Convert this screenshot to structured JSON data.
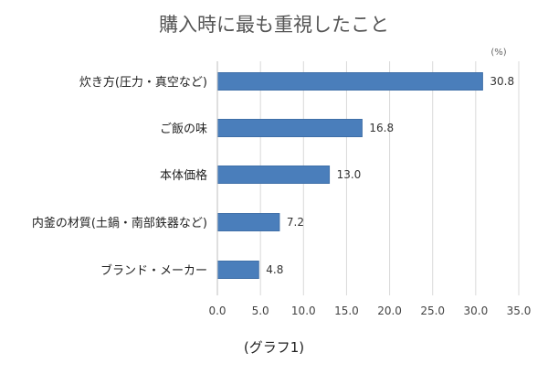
{
  "chart_data": {
    "type": "bar",
    "orientation": "horizontal",
    "title": "購入時に最も重視したこと",
    "unit_label": "(%)",
    "caption": "(グラフ1)",
    "categories": [
      "炊き方(圧力・真空など)",
      "ご飯の味",
      "本体価格",
      "内釜の材質(土鍋・南部鉄器など)",
      "ブランド・メーカー"
    ],
    "values": [
      30.8,
      16.8,
      13.0,
      7.2,
      4.8
    ],
    "value_labels": [
      "30.8",
      "16.8",
      "13.0",
      "7.2",
      "4.8"
    ],
    "x_ticks": [
      "0.0",
      "5.0",
      "10.0",
      "15.0",
      "20.0",
      "25.0",
      "30.0",
      "35.0"
    ],
    "xlim": [
      0,
      35
    ],
    "xlabel": "",
    "ylabel": "",
    "grid": true,
    "bar_color": "#4a7ebb"
  }
}
